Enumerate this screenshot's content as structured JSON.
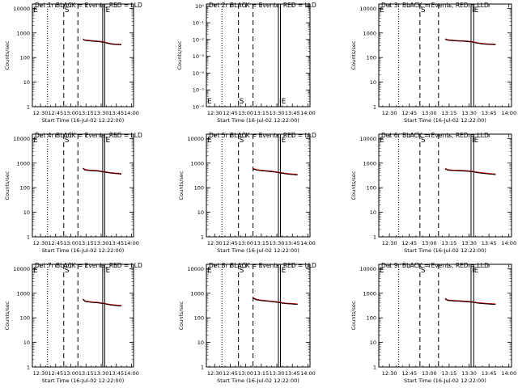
{
  "colors": {
    "background": "#ffffff",
    "axes": "#000000",
    "events": "#000000",
    "lld": "#cc0000"
  },
  "chart_data": [
    {
      "type": "line",
      "title": "Det 1r BLACK = Events, RED = LLD",
      "xlabel": "Start Time (16-Jul-02 12:22:00)",
      "ylabel": "Counts/sec",
      "x_tick_labels": [
        "12:30",
        "12:45",
        "13:00",
        "13:15",
        "13:30",
        "13:45",
        "14:00"
      ],
      "y_tick_labels": [
        "1",
        "10",
        "100",
        "1000",
        "10000"
      ],
      "x_unit": "minutes since 12:00",
      "xlim": [
        22,
        122
      ],
      "ylim": [
        1,
        15000
      ],
      "y_scale": "log",
      "marker_labels": [
        "E",
        "S",
        "IE"
      ],
      "vlines": {
        "dotted": [
          37
        ],
        "dashed": [
          53,
          67
        ],
        "solid": [
          91.5,
          93.5
        ]
      },
      "grid": false,
      "series": [
        {
          "color": "#cc0000",
          "x": [
            72,
            74,
            78,
            82,
            86,
            90,
            93,
            96,
            100,
            104,
            108,
            110
          ],
          "y": [
            560,
            510,
            490,
            470,
            460,
            440,
            420,
            390,
            360,
            345,
            340,
            335
          ]
        },
        {
          "color": "#000000",
          "x": [
            72,
            74,
            78,
            82,
            86,
            90,
            93,
            96,
            100,
            104,
            108,
            110
          ],
          "y": [
            540,
            500,
            480,
            460,
            450,
            430,
            410,
            380,
            350,
            340,
            335,
            330
          ]
        }
      ]
    },
    {
      "type": "line",
      "title": "Det 2r BLACK = Events, RED = LLD",
      "xlabel": "Start Time (16-Jul-02 12:22:00)",
      "ylabel": "Counts/sec",
      "x_tick_labels": [
        "12:30",
        "12:45",
        "13:00",
        "13:15",
        "13:30",
        "13:45",
        "14:00"
      ],
      "y_tick_labels": [
        "10⁻⁶",
        "10⁻⁵",
        "10⁻⁴",
        "10⁻³",
        "10⁻²",
        "10⁻¹",
        "10⁰"
      ],
      "x_unit": "minutes since 12:00",
      "xlim": [
        22,
        122
      ],
      "ylim": [
        1e-06,
        1.3
      ],
      "y_scale": "log",
      "marker_labels": [
        "E",
        "S",
        "IE"
      ],
      "marker_label_position": "bottom",
      "vlines": {
        "dotted": [
          37
        ],
        "dashed": [
          53,
          67
        ],
        "solid": [
          91.5,
          93.5
        ]
      },
      "grid": false,
      "series": []
    },
    {
      "type": "line",
      "title": "Det 3r BLACK = Events, RED = LLD",
      "xlabel": "Start Time (16-Jul-02 12:22:00)",
      "ylabel": "Counts/sec",
      "x_tick_labels": [
        "12:30",
        "12:45",
        "13:00",
        "13:15",
        "13:30",
        "13:45",
        "14:00"
      ],
      "y_tick_labels": [
        "1",
        "10",
        "100",
        "1000",
        "10000"
      ],
      "x_unit": "minutes since 12:00",
      "xlim": [
        22,
        122
      ],
      "ylim": [
        1,
        15000
      ],
      "y_scale": "log",
      "marker_labels": [
        "E",
        "S",
        "IE"
      ],
      "vlines": {
        "dotted": [
          37
        ],
        "dashed": [
          53,
          67
        ],
        "solid": [
          91.5,
          93.5
        ]
      },
      "grid": false,
      "series": [
        {
          "color": "#cc0000",
          "x": [
            72,
            74,
            78,
            82,
            86,
            90,
            93,
            96,
            100,
            104,
            108,
            110
          ],
          "y": [
            570,
            520,
            495,
            480,
            470,
            450,
            430,
            395,
            365,
            350,
            345,
            340
          ]
        },
        {
          "color": "#000000",
          "x": [
            72,
            74,
            78,
            82,
            86,
            90,
            93,
            96,
            100,
            104,
            108,
            110
          ],
          "y": [
            550,
            505,
            485,
            470,
            460,
            440,
            420,
            385,
            355,
            345,
            340,
            335
          ]
        }
      ]
    },
    {
      "type": "line",
      "title": "Det 4r BLACK = Events, RED = LLD",
      "xlabel": "Start Time (16-Jul-02 12:22:00)",
      "ylabel": "Counts/sec",
      "x_tick_labels": [
        "12:30",
        "12:45",
        "13:00",
        "13:15",
        "13:30",
        "13:45",
        "14:00"
      ],
      "y_tick_labels": [
        "1",
        "10",
        "100",
        "1000",
        "10000"
      ],
      "x_unit": "minutes since 12:00",
      "xlim": [
        22,
        122
      ],
      "ylim": [
        1,
        15000
      ],
      "y_scale": "log",
      "marker_labels": [
        "E",
        "S",
        "IE"
      ],
      "vlines": {
        "dotted": [
          37
        ],
        "dashed": [
          53,
          67
        ],
        "solid": [
          91.5,
          93.5
        ]
      },
      "grid": false,
      "series": [
        {
          "color": "#cc0000",
          "x": [
            72,
            74,
            78,
            82,
            86,
            90,
            93,
            96,
            100,
            104,
            108,
            110
          ],
          "y": [
            620,
            540,
            510,
            500,
            490,
            460,
            440,
            420,
            400,
            385,
            375,
            360
          ]
        },
        {
          "color": "#000000",
          "x": [
            72,
            74,
            78,
            82,
            86,
            90,
            93,
            96,
            100,
            104,
            108,
            110
          ],
          "y": [
            600,
            520,
            500,
            490,
            480,
            450,
            430,
            410,
            390,
            375,
            365,
            350
          ]
        }
      ]
    },
    {
      "type": "line",
      "title": "Det 5r BLACK = Events, RED = LLD",
      "xlabel": "Start Time (16-Jul-02 12:22:00)",
      "ylabel": "Counts/sec",
      "x_tick_labels": [
        "12:30",
        "12:45",
        "13:00",
        "13:15",
        "13:30",
        "13:45",
        "14:00"
      ],
      "y_tick_labels": [
        "1",
        "10",
        "100",
        "1000",
        "10000"
      ],
      "x_unit": "minutes since 12:00",
      "xlim": [
        22,
        122
      ],
      "ylim": [
        1,
        15000
      ],
      "y_scale": "log",
      "marker_labels": [
        "E",
        "S",
        "IE"
      ],
      "vlines": {
        "dotted": [
          37
        ],
        "dashed": [
          53,
          67
        ],
        "solid": [
          91.5,
          93.5
        ]
      },
      "grid": false,
      "series": [
        {
          "color": "#cc0000",
          "x": [
            67,
            70,
            74,
            78,
            82,
            86,
            90,
            93,
            96,
            100,
            104,
            108,
            110
          ],
          "y": [
            600,
            540,
            510,
            490,
            470,
            455,
            430,
            410,
            390,
            370,
            355,
            345,
            340
          ]
        },
        {
          "color": "#000000",
          "x": [
            67,
            70,
            74,
            78,
            82,
            86,
            90,
            93,
            96,
            100,
            104,
            108,
            110
          ],
          "y": [
            580,
            525,
            495,
            480,
            460,
            445,
            420,
            400,
            380,
            360,
            345,
            335,
            330
          ]
        }
      ]
    },
    {
      "type": "line",
      "title": "Det 6r BLACK = Events, RED = LLD",
      "xlabel": "Start Time (16-Jul-02 12:22:00)",
      "ylabel": "Counts/sec",
      "x_tick_labels": [
        "12:30",
        "12:45",
        "13:00",
        "13:15",
        "13:30",
        "13:45",
        "14:00"
      ],
      "y_tick_labels": [
        "1",
        "10",
        "100",
        "1000",
        "10000"
      ],
      "x_unit": "minutes since 12:00",
      "xlim": [
        22,
        122
      ],
      "ylim": [
        1,
        15000
      ],
      "y_scale": "log",
      "marker_labels": [
        "E",
        "S",
        "IE"
      ],
      "vlines": {
        "dotted": [
          37
        ],
        "dashed": [
          53,
          67
        ],
        "solid": [
          91.5,
          93.5
        ]
      },
      "grid": false,
      "series": [
        {
          "color": "#cc0000",
          "x": [
            72,
            74,
            78,
            82,
            86,
            90,
            93,
            96,
            100,
            104,
            108,
            110
          ],
          "y": [
            600,
            530,
            510,
            500,
            490,
            470,
            450,
            420,
            395,
            375,
            360,
            350
          ]
        },
        {
          "color": "#000000",
          "x": [
            72,
            74,
            78,
            82,
            86,
            90,
            93,
            96,
            100,
            104,
            108,
            110
          ],
          "y": [
            580,
            515,
            500,
            490,
            480,
            460,
            440,
            410,
            385,
            365,
            350,
            340
          ]
        }
      ]
    },
    {
      "type": "line",
      "title": "Det 7r BLACK = Events, RED = LLD",
      "xlabel": "Start Time (16-Jul-02 12:22:00)",
      "ylabel": "Counts/sec",
      "x_tick_labels": [
        "12:30",
        "12:45",
        "13:00",
        "13:15",
        "13:30",
        "13:45",
        "14:00"
      ],
      "y_tick_labels": [
        "1",
        "10",
        "100",
        "1000",
        "10000"
      ],
      "x_unit": "minutes since 12:00",
      "xlim": [
        22,
        122
      ],
      "ylim": [
        1,
        15000
      ],
      "y_scale": "log",
      "marker_labels": [
        "E",
        "S",
        "IE"
      ],
      "vlines": {
        "dotted": [
          37
        ],
        "dashed": [
          53,
          67
        ],
        "solid": [
          91.5,
          93.5
        ]
      },
      "grid": false,
      "series": [
        {
          "color": "#cc0000",
          "x": [
            72,
            74,
            78,
            82,
            86,
            90,
            93,
            96,
            100,
            104,
            108,
            110
          ],
          "y": [
            580,
            480,
            450,
            430,
            420,
            400,
            385,
            360,
            340,
            325,
            315,
            310
          ]
        },
        {
          "color": "#000000",
          "x": [
            72,
            74,
            78,
            82,
            86,
            90,
            93,
            96,
            100,
            104,
            108,
            110
          ],
          "y": [
            560,
            465,
            440,
            420,
            410,
            390,
            375,
            350,
            330,
            315,
            305,
            300
          ]
        }
      ]
    },
    {
      "type": "line",
      "title": "Det 8r BLACK = Events, RED = LLD",
      "xlabel": "Start Time (16-Jul-02 12:22:00)",
      "ylabel": "Counts/sec",
      "x_tick_labels": [
        "12:30",
        "12:45",
        "13:00",
        "13:15",
        "13:30",
        "13:45",
        "14:00"
      ],
      "y_tick_labels": [
        "1",
        "10",
        "100",
        "1000",
        "10000"
      ],
      "x_unit": "minutes since 12:00",
      "xlim": [
        22,
        122
      ],
      "ylim": [
        1,
        15000
      ],
      "y_scale": "log",
      "marker_labels": [
        "E",
        "S",
        "IE"
      ],
      "vlines": {
        "dotted": [
          37
        ],
        "dashed": [
          53,
          67
        ],
        "solid": [
          91.5,
          93.5
        ]
      },
      "grid": false,
      "series": [
        {
          "color": "#cc0000",
          "x": [
            67,
            70,
            74,
            78,
            82,
            86,
            90,
            93,
            96,
            100,
            104,
            108,
            110
          ],
          "y": [
            640,
            560,
            520,
            500,
            480,
            460,
            440,
            420,
            400,
            385,
            375,
            365,
            360
          ]
        },
        {
          "color": "#000000",
          "x": [
            67,
            70,
            74,
            78,
            82,
            86,
            90,
            93,
            96,
            100,
            104,
            108,
            110
          ],
          "y": [
            620,
            545,
            505,
            490,
            470,
            450,
            430,
            410,
            390,
            375,
            365,
            355,
            350
          ]
        }
      ]
    },
    {
      "type": "line",
      "title": "Det 9r BLACK = Events, RED = LLD",
      "xlabel": "Start Time (16-Jul-02 12:22:00)",
      "ylabel": "Counts/sec",
      "x_tick_labels": [
        "12:30",
        "12:45",
        "13:00",
        "13:15",
        "13:30",
        "13:45",
        "14:00"
      ],
      "y_tick_labels": [
        "1",
        "10",
        "100",
        "1000",
        "10000"
      ],
      "x_unit": "minutes since 12:00",
      "xlim": [
        22,
        122
      ],
      "ylim": [
        1,
        15000
      ],
      "y_scale": "log",
      "marker_labels": [
        "E",
        "S",
        "IE"
      ],
      "vlines": {
        "dotted": [
          37
        ],
        "dashed": [
          53,
          67
        ],
        "solid": [
          91.5,
          93.5
        ]
      },
      "grid": false,
      "series": [
        {
          "color": "#cc0000",
          "x": [
            72,
            74,
            78,
            82,
            86,
            90,
            93,
            96,
            100,
            104,
            108,
            110
          ],
          "y": [
            600,
            520,
            500,
            485,
            470,
            455,
            440,
            410,
            390,
            375,
            365,
            360
          ]
        },
        {
          "color": "#000000",
          "x": [
            72,
            74,
            78,
            82,
            86,
            90,
            93,
            96,
            100,
            104,
            108,
            110
          ],
          "y": [
            580,
            505,
            490,
            475,
            460,
            445,
            430,
            400,
            380,
            365,
            355,
            350
          ]
        }
      ]
    }
  ]
}
